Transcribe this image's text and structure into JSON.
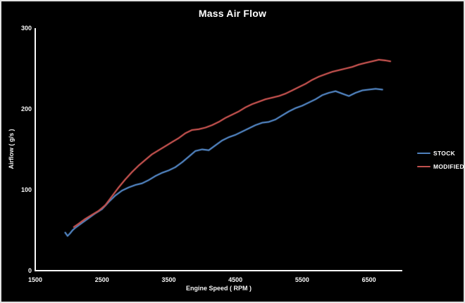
{
  "chart_data": {
    "type": "line",
    "title": "Mass Air Flow",
    "xlabel": "Engine Speed ( RPM )",
    "ylabel": "Airflow ( g/s )",
    "xlim": [
      1500,
      7000
    ],
    "ylim": [
      0,
      300
    ],
    "x_ticks": [
      1500,
      2500,
      3500,
      4500,
      5500,
      6500
    ],
    "y_ticks": [
      0,
      100,
      200,
      300
    ],
    "grid": false,
    "legend_position": "right",
    "background_color": "#000000",
    "axis_color": "#fafafa",
    "series": [
      {
        "name": "STOCK",
        "color": "#4f81bd",
        "points": [
          [
            1950,
            47
          ],
          [
            1985,
            43
          ],
          [
            2020,
            46
          ],
          [
            2060,
            50
          ],
          [
            2100,
            53
          ],
          [
            2200,
            59
          ],
          [
            2300,
            65
          ],
          [
            2400,
            71
          ],
          [
            2500,
            76
          ],
          [
            2600,
            85
          ],
          [
            2700,
            93
          ],
          [
            2800,
            99
          ],
          [
            2900,
            103
          ],
          [
            3000,
            106
          ],
          [
            3100,
            108
          ],
          [
            3200,
            112
          ],
          [
            3300,
            117
          ],
          [
            3400,
            121
          ],
          [
            3500,
            124
          ],
          [
            3600,
            128
          ],
          [
            3700,
            134
          ],
          [
            3800,
            141
          ],
          [
            3900,
            148
          ],
          [
            4000,
            150
          ],
          [
            4100,
            149
          ],
          [
            4200,
            155
          ],
          [
            4300,
            161
          ],
          [
            4400,
            165
          ],
          [
            4500,
            168
          ],
          [
            4600,
            172
          ],
          [
            4700,
            176
          ],
          [
            4800,
            180
          ],
          [
            4900,
            183
          ],
          [
            5000,
            184
          ],
          [
            5100,
            187
          ],
          [
            5200,
            192
          ],
          [
            5300,
            197
          ],
          [
            5400,
            201
          ],
          [
            5500,
            204
          ],
          [
            5600,
            208
          ],
          [
            5700,
            212
          ],
          [
            5800,
            217
          ],
          [
            5900,
            220
          ],
          [
            6000,
            222
          ],
          [
            6100,
            219
          ],
          [
            6200,
            216
          ],
          [
            6300,
            220
          ],
          [
            6400,
            223
          ],
          [
            6500,
            224
          ],
          [
            6600,
            225
          ],
          [
            6700,
            224
          ]
        ]
      },
      {
        "name": "MODIFIED",
        "color": "#c0504d",
        "points": [
          [
            2080,
            54
          ],
          [
            2150,
            58
          ],
          [
            2250,
            64
          ],
          [
            2350,
            69
          ],
          [
            2450,
            74
          ],
          [
            2550,
            81
          ],
          [
            2650,
            92
          ],
          [
            2750,
            103
          ],
          [
            2850,
            113
          ],
          [
            2950,
            122
          ],
          [
            3050,
            130
          ],
          [
            3150,
            137
          ],
          [
            3250,
            144
          ],
          [
            3350,
            149
          ],
          [
            3450,
            154
          ],
          [
            3550,
            159
          ],
          [
            3650,
            164
          ],
          [
            3750,
            170
          ],
          [
            3850,
            174
          ],
          [
            3950,
            175
          ],
          [
            4050,
            177
          ],
          [
            4150,
            180
          ],
          [
            4250,
            184
          ],
          [
            4350,
            189
          ],
          [
            4450,
            193
          ],
          [
            4550,
            197
          ],
          [
            4650,
            202
          ],
          [
            4750,
            206
          ],
          [
            4850,
            209
          ],
          [
            4950,
            212
          ],
          [
            5050,
            214
          ],
          [
            5150,
            216
          ],
          [
            5250,
            219
          ],
          [
            5350,
            223
          ],
          [
            5450,
            227
          ],
          [
            5550,
            231
          ],
          [
            5650,
            236
          ],
          [
            5750,
            240
          ],
          [
            5850,
            243
          ],
          [
            5950,
            246
          ],
          [
            6050,
            248
          ],
          [
            6150,
            250
          ],
          [
            6250,
            252
          ],
          [
            6350,
            255
          ],
          [
            6450,
            257
          ],
          [
            6550,
            259
          ],
          [
            6650,
            261
          ],
          [
            6750,
            260
          ],
          [
            6820,
            259
          ]
        ]
      }
    ]
  }
}
